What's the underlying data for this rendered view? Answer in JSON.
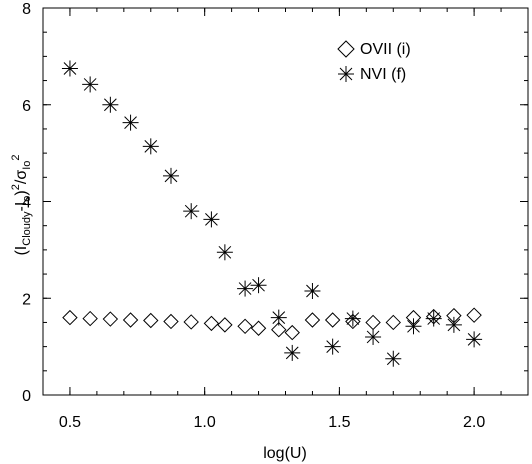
{
  "chart_data": {
    "type": "scatter",
    "xlabel": "log(U)",
    "ylabel": {
      "base": "(I",
      "sub1": "Cloudy",
      "mid": "-I",
      "sub2": "o",
      "after": ")",
      "sup1": "2",
      "slash": "/σ",
      "sub3": "Io",
      "sup2": "2"
    },
    "xlim": [
      0.4,
      2.2
    ],
    "ylim": [
      0,
      8
    ],
    "xticks": [
      "0.5",
      "1.0",
      "1.5",
      "2.0"
    ],
    "xtick_values": [
      0.5,
      1.0,
      1.5,
      2.0
    ],
    "yticks": [
      "0",
      "2",
      "4",
      "6",
      "8"
    ],
    "ytick_values": [
      0,
      2,
      4,
      6,
      8
    ],
    "grid": false,
    "legend_position": "top-right",
    "series": [
      {
        "name": "OVII (i)",
        "marker": "diamond",
        "x": [
          0.5,
          0.575,
          0.65,
          0.725,
          0.8,
          0.875,
          0.95,
          1.025,
          1.075,
          1.15,
          1.2,
          1.275,
          1.325,
          1.4,
          1.475,
          1.55,
          1.625,
          1.7,
          1.775,
          1.85,
          1.925,
          2.0
        ],
        "y": [
          1.6,
          1.58,
          1.57,
          1.55,
          1.54,
          1.52,
          1.51,
          1.48,
          1.45,
          1.42,
          1.38,
          1.35,
          1.29,
          1.55,
          1.55,
          1.52,
          1.5,
          1.5,
          1.6,
          1.62,
          1.64,
          1.65
        ]
      },
      {
        "name": "NVI (f)",
        "marker": "asterisk",
        "x": [
          0.5,
          0.575,
          0.65,
          0.725,
          0.8,
          0.875,
          0.95,
          1.025,
          1.075,
          1.15,
          1.2,
          1.275,
          1.325,
          1.4,
          1.475,
          1.55,
          1.625,
          1.7,
          1.775,
          1.85,
          1.925,
          2.0
        ],
        "y": [
          6.75,
          6.42,
          6.0,
          5.63,
          5.14,
          4.53,
          3.8,
          3.63,
          2.95,
          2.2,
          2.27,
          1.6,
          0.87,
          2.15,
          1.0,
          1.58,
          1.2,
          0.75,
          1.42,
          1.58,
          1.45,
          1.15
        ]
      }
    ]
  }
}
